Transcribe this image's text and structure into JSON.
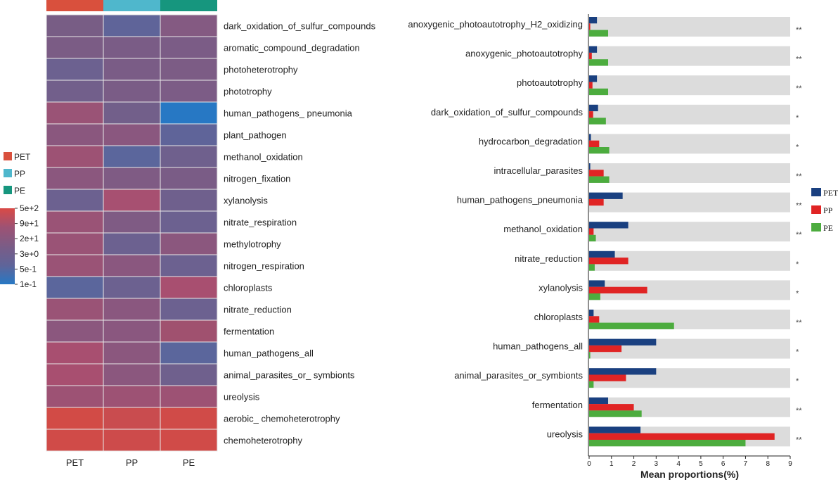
{
  "heatmap": {
    "columns": [
      "PET",
      "PP",
      "PE"
    ],
    "group_colors": [
      "#d9503d",
      "#4fb7cc",
      "#16967e"
    ],
    "rows": [
      "dark_oxidation_of_sulfur_compounds",
      "aromatic_compound_degradation",
      "photoheterotrophy",
      "phototrophy",
      "human_pathogens_ pneumonia",
      "plant_pathogen",
      "methanol_oxidation",
      "nitrogen_fixation",
      "xylanolysis",
      "nitrate_respiration",
      "methylotrophy",
      "nitrogen_respiration",
      "chloroplasts",
      "nitrate_reduction",
      "fermentation",
      "human_pathogens_all",
      "animal_parasites_or_ symbionts",
      "ureolysis",
      "aerobic_ chemoheterotrophy",
      "chemoheterotrophy"
    ],
    "cell_colors": [
      [
        "#785d85",
        "#5f6499",
        "#845a82"
      ],
      [
        "#7b5c85",
        "#7a5c86",
        "#7b5c86"
      ],
      [
        "#6c6190",
        "#7a5c86",
        "#7c5c85"
      ],
      [
        "#725f8b",
        "#7a5c86",
        "#7c5c86"
      ],
      [
        "#9a5376",
        "#725f8a",
        "#2778c4"
      ],
      [
        "#8a577e",
        "#8a577f",
        "#5f6499"
      ],
      [
        "#9d5274",
        "#5b669c",
        "#6f608d"
      ],
      [
        "#8b577e",
        "#7f5b84",
        "#7a5c86"
      ],
      [
        "#6c6190",
        "#a75071",
        "#6f608d"
      ],
      [
        "#9a5376",
        "#7f5b84",
        "#6c6190"
      ],
      [
        "#9a5376",
        "#6c6190",
        "#8b577e"
      ],
      [
        "#9a5376",
        "#8a577f",
        "#6c6190"
      ],
      [
        "#5b669c",
        "#6c6190",
        "#a84f70"
      ],
      [
        "#9a5376",
        "#8a577f",
        "#6c6190"
      ],
      [
        "#8b577e",
        "#8a577f",
        "#a0516f"
      ],
      [
        "#a84f70",
        "#8b577e",
        "#5b669c"
      ],
      [
        "#a84f70",
        "#8b577e",
        "#6f608d"
      ],
      [
        "#9d5274",
        "#9d5274",
        "#9d5274"
      ],
      [
        "#d24b46",
        "#c94c4f",
        "#d04b48"
      ],
      [
        "#d04b48",
        "#cd4b4b",
        "#d04b48"
      ]
    ],
    "legend": {
      "groups": [
        "PET",
        "PP",
        "PE"
      ],
      "scale_labels": [
        "5e+2",
        "9e+1",
        "2e+1",
        "3e+0",
        "5e-1",
        "1e-1"
      ],
      "scale_colors": [
        "#d94a46",
        "#9d5274",
        "#7b5c86",
        "#5f6499",
        "#2778c4"
      ]
    }
  },
  "chart_data": {
    "type": "bar",
    "orientation": "horizontal",
    "xlabel": "Mean proportions(%)",
    "xlim": [
      0,
      9
    ],
    "xticks": [
      "0",
      "1",
      "2",
      "3",
      "4",
      "5",
      "6",
      "7",
      "8",
      "9"
    ],
    "categories": [
      "anoxygenic_photoautotrophy_H2_oxidizing",
      "anoxygenic_photoautotrophy",
      "photoautotrophy",
      "dark_oxidation_of_sulfur_compounds",
      "hydrocarbon_degradation",
      "intracellular_parasites",
      "human_pathogens_pneumonia",
      "methanol_oxidation",
      "nitrate_reduction",
      "xylanolysis",
      "chloroplasts",
      "human_pathogens_all",
      "animal_parasites_or_symbionts",
      "fermentation",
      "ureolysis"
    ],
    "significance": [
      "**",
      "**",
      "**",
      "*",
      "*",
      "**",
      "**",
      "**",
      "*",
      "*",
      "**",
      "*",
      "*",
      "**",
      "**"
    ],
    "series": [
      {
        "name": "PET",
        "color": "#1a4080",
        "values": [
          0.35,
          0.35,
          0.35,
          0.4,
          0.08,
          0.05,
          1.5,
          1.75,
          1.15,
          0.7,
          0.2,
          3.0,
          3.0,
          0.85,
          2.3
        ]
      },
      {
        "name": "PP",
        "color": "#e02424",
        "values": [
          0.05,
          0.12,
          0.15,
          0.18,
          0.45,
          0.65,
          0.65,
          0.2,
          1.75,
          2.6,
          0.45,
          1.45,
          1.65,
          2.0,
          8.3
        ]
      },
      {
        "name": "PE",
        "color": "#4cac3e",
        "values": [
          0.85,
          0.85,
          0.85,
          0.75,
          0.9,
          0.9,
          0.0,
          0.3,
          0.25,
          0.5,
          3.8,
          0.05,
          0.2,
          2.35,
          7.0
        ]
      }
    ],
    "legend": [
      "PET",
      "PP",
      "PE"
    ],
    "legend_position": "right"
  }
}
